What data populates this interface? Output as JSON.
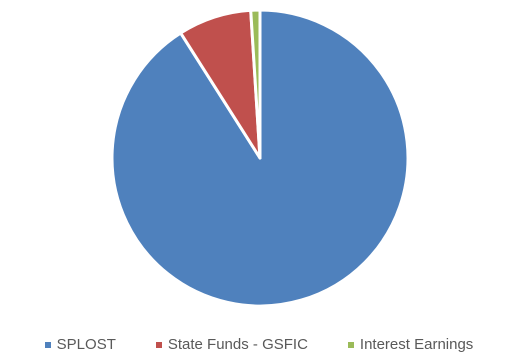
{
  "chart_data": {
    "type": "pie",
    "title": "",
    "slices": [
      {
        "label": "SPLOST",
        "value": 91.0,
        "color": "#4F81BD"
      },
      {
        "label": "State Funds - GSFIC",
        "value": 8.0,
        "color": "#C0504D"
      },
      {
        "label": "Interest Earnings",
        "value": 1.0,
        "color": "#9BBB59"
      }
    ],
    "legend": {
      "position": "bottom",
      "entries": [
        "SPLOST",
        "State Funds - GSFIC",
        "Interest Earnings"
      ]
    }
  }
}
